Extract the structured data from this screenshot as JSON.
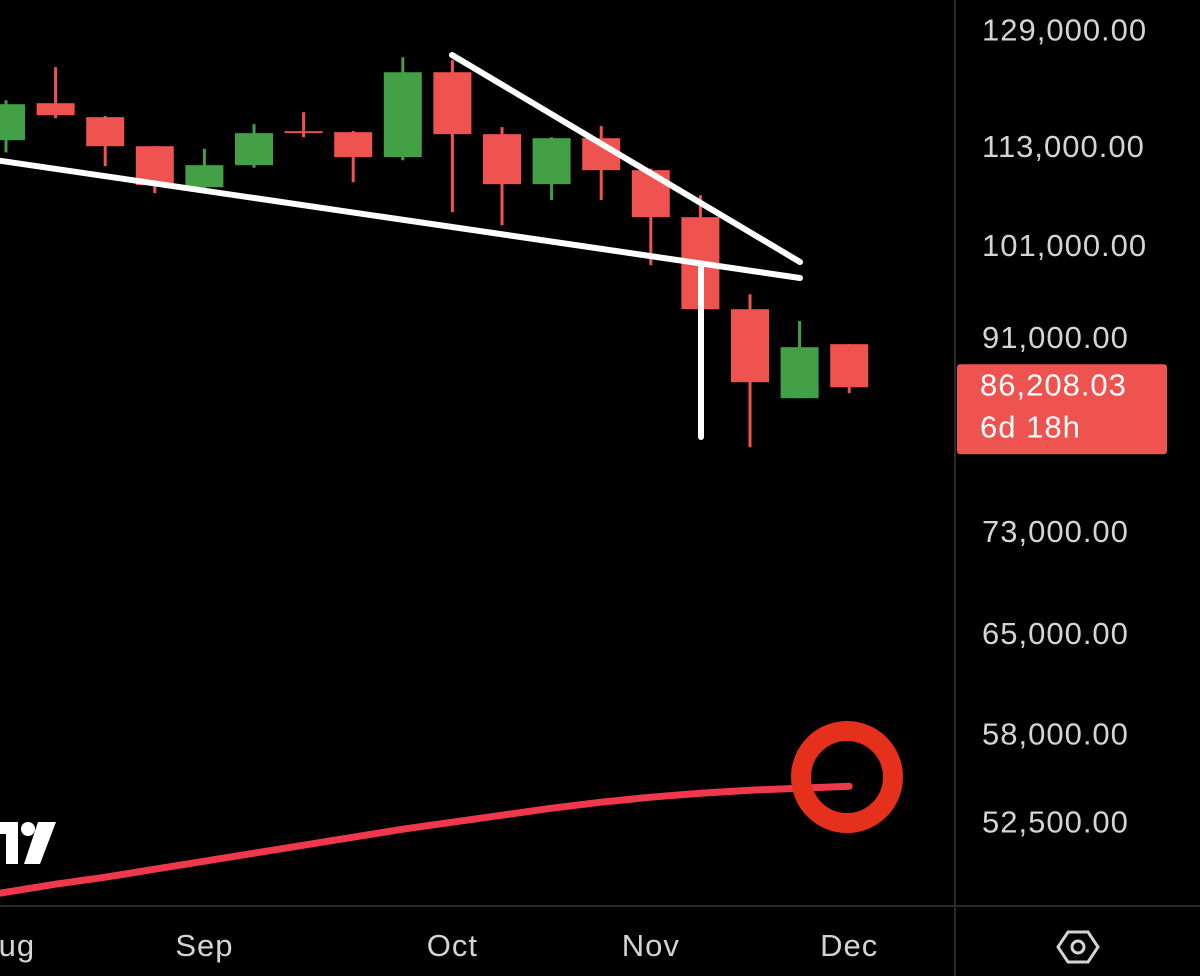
{
  "chart_data": {
    "type": "candlestick",
    "log_scale": true,
    "up_color": "#43a047",
    "down_color": "#ef5350",
    "categories": [
      "Aug",
      null,
      null,
      null,
      "Sep",
      null,
      null,
      null,
      null,
      "Oct",
      null,
      null,
      null,
      "Nov",
      null,
      null,
      null,
      "Dec"
    ],
    "open": [
      114120,
      119010,
      117135,
      113340,
      108190,
      110925,
      115290,
      115160,
      111940,
      123270,
      114900,
      108560,
      114375,
      110300,
      104565,
      94195,
      85145,
      90530
    ],
    "high": [
      119400,
      123975,
      117300,
      113340,
      113000,
      116210,
      117800,
      115300,
      125390,
      124965,
      115815,
      114500,
      115945,
      110500,
      107210,
      95815,
      92925,
      90530
    ],
    "low": [
      112550,
      117000,
      110800,
      107455,
      107820,
      110600,
      114510,
      108805,
      111555,
      105160,
      103620,
      106605,
      106605,
      99020,
      93900,
      80540,
      85145,
      85630
    ],
    "close": [
      118875,
      117400,
      113340,
      108435,
      110925,
      115030,
      115100,
      111940,
      123270,
      114900,
      108560,
      114375,
      110300,
      104565,
      94195,
      86705,
      90220,
      86208.03
    ],
    "overlay": {
      "color": "#f0384d",
      "values": [
        48602,
        49045,
        49437,
        49888,
        50343,
        50803,
        51266,
        51734,
        52205,
        52622,
        53041,
        53464,
        53830,
        54136,
        54383,
        54568,
        54692,
        54816
      ]
    },
    "ylim": [
      133800,
      47900
    ],
    "yticks": [
      {
        "value": 129000,
        "label": "129,000.00"
      },
      {
        "value": 113000,
        "label": "113,000.00"
      },
      {
        "value": 101000,
        "label": "101,000.00"
      },
      {
        "value": 91000,
        "label": "91,000.00"
      },
      {
        "value": 73000,
        "label": "73,000.00"
      },
      {
        "value": 65000,
        "label": "65,000.00"
      },
      {
        "value": 58000,
        "label": "58,000.00"
      },
      {
        "value": 52500,
        "label": "52,500.00"
      }
    ],
    "last_price": {
      "value": 86208.03,
      "label": "86,208.03",
      "color": "#ef5350"
    },
    "countdown": "6d 18h"
  }
}
